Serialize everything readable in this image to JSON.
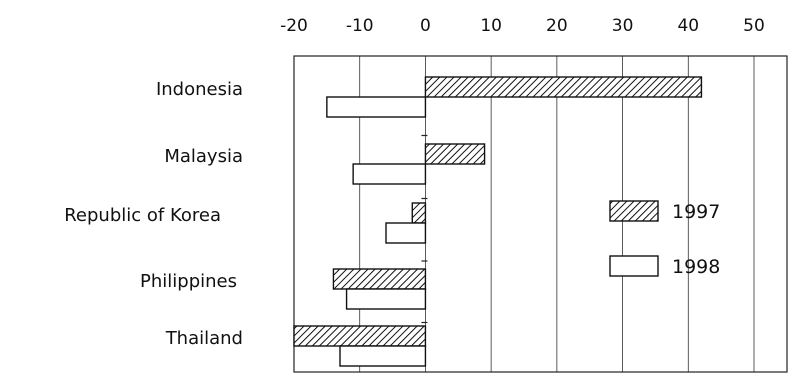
{
  "chart_data": {
    "type": "bar",
    "orientation": "horizontal",
    "title": "",
    "xlabel": "",
    "ylabel": "",
    "categories": [
      "Indonesia",
      "Malaysia",
      "Republic of Korea",
      "Philippines",
      "Thailand"
    ],
    "series": [
      {
        "name": "1997",
        "pattern": "hatched",
        "values": [
          42,
          9,
          -2,
          -14,
          -20
        ]
      },
      {
        "name": "1998",
        "pattern": "white",
        "values": [
          -15,
          -11,
          -6,
          -12,
          -13
        ]
      }
    ],
    "xlim": [
      -20,
      50
    ],
    "xticks": [
      "-20",
      "-10",
      "0",
      "10",
      "20",
      "30",
      "40",
      "50"
    ],
    "tick_values": [
      -20,
      -10,
      0,
      10,
      20,
      30,
      40,
      50
    ],
    "x_axis_position": "top",
    "grid": true,
    "legend_position": "right"
  }
}
